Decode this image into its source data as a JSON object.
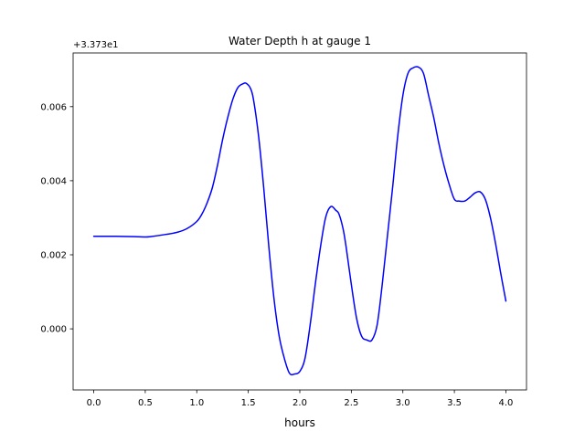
{
  "chart_data": {
    "type": "line",
    "title": "Water Depth h at gauge 1",
    "xlabel": "hours",
    "ylabel": "",
    "offset_label": "+3.373e1",
    "offset_value": 33.73,
    "xlim": [
      -0.2,
      4.2
    ],
    "ylim": [
      -0.00165,
      0.00745
    ],
    "x_ticks": [
      0.0,
      0.5,
      1.0,
      1.5,
      2.0,
      2.5,
      3.0,
      3.5,
      4.0
    ],
    "x_tick_labels": [
      "0.0",
      "0.5",
      "1.0",
      "1.5",
      "2.0",
      "2.5",
      "3.0",
      "3.5",
      "4.0"
    ],
    "y_ticks": [
      0.0,
      0.002,
      0.004,
      0.006
    ],
    "y_tick_labels": [
      "0.000",
      "0.002",
      "0.004",
      "0.006"
    ],
    "grid": false,
    "legend": "none",
    "series": [
      {
        "color": "#0000ff",
        "x": [
          0.0,
          0.2,
          0.4,
          0.5,
          0.55,
          0.7,
          0.8,
          0.9,
          1.0,
          1.05,
          1.1,
          1.15,
          1.2,
          1.25,
          1.3,
          1.35,
          1.4,
          1.45,
          1.48,
          1.52,
          1.55,
          1.6,
          1.65,
          1.7,
          1.75,
          1.8,
          1.85,
          1.9,
          1.95,
          2.0,
          2.05,
          2.1,
          2.15,
          2.2,
          2.25,
          2.3,
          2.35,
          2.38,
          2.42,
          2.45,
          2.5,
          2.55,
          2.6,
          2.65,
          2.7,
          2.75,
          2.8,
          2.85,
          2.9,
          2.95,
          3.0,
          3.05,
          3.1,
          3.15,
          3.2,
          3.25,
          3.3,
          3.35,
          3.4,
          3.45,
          3.5,
          3.55,
          3.6,
          3.65,
          3.7,
          3.75,
          3.8,
          3.85,
          3.9,
          3.95,
          4.0
        ],
        "y": [
          0.0025,
          0.0025,
          0.00249,
          0.00248,
          0.00249,
          0.00255,
          0.0026,
          0.0027,
          0.0029,
          0.0031,
          0.0034,
          0.0038,
          0.0044,
          0.0051,
          0.0057,
          0.0062,
          0.00652,
          0.00662,
          0.00663,
          0.0065,
          0.0062,
          0.0052,
          0.0038,
          0.0022,
          0.0008,
          -0.0002,
          -0.0008,
          -0.0012,
          -0.00122,
          -0.00115,
          -0.0008,
          0.0001,
          0.0012,
          0.0022,
          0.003,
          0.0033,
          0.0032,
          0.0031,
          0.0027,
          0.0022,
          0.0012,
          0.0003,
          -0.0002,
          -0.0003,
          -0.0003,
          0.0001,
          0.0012,
          0.0025,
          0.0038,
          0.0052,
          0.0063,
          0.0069,
          0.00705,
          0.00707,
          0.0069,
          0.0063,
          0.0057,
          0.005,
          0.0044,
          0.0039,
          0.0035,
          0.00345,
          0.00345,
          0.00355,
          0.00367,
          0.0037,
          0.0035,
          0.003,
          0.0023,
          0.0015,
          0.00075
        ]
      }
    ]
  }
}
